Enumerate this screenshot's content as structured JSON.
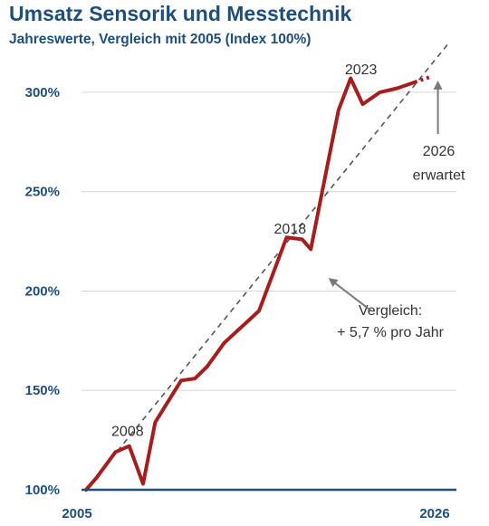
{
  "chart_data": {
    "type": "line",
    "title": "Umsatz Sensorik und Messtechnik",
    "subtitle": "Jahreswerte, Vergleich mit 2005 (Index 100%)",
    "xlabel": "",
    "ylabel": "",
    "xlim": [
      2005,
      2026
    ],
    "ylim": [
      100,
      320
    ],
    "yticks": [
      100,
      150,
      200,
      250,
      300
    ],
    "ytick_labels": [
      "100%",
      "150%",
      "200%",
      "250%",
      "300%"
    ],
    "xtick_labels": [
      "2005",
      "2026"
    ],
    "grid": "horizontal",
    "series": [
      {
        "x": [
          2005,
          2005.6,
          2006.7,
          2007.5,
          2008.3,
          2009,
          2010.5,
          2011.3,
          2012,
          2013,
          2014,
          2015,
          2016.6,
          2017.5,
          2018,
          2019,
          2019.6,
          2020.3,
          2021,
          2022,
          2023,
          2024,
          2025
        ],
        "y": [
          100,
          106,
          119,
          122,
          103,
          134,
          155,
          156,
          162,
          174,
          182,
          190,
          227,
          226,
          221,
          265,
          291,
          307,
          294,
          300,
          302,
          305,
          308
        ],
        "color": "#a51d1d",
        "projected_from_x": 2024
      },
      {
        "x": [
          2005,
          2026
        ],
        "y": [
          100,
          325
        ],
        "color": "#555555",
        "style": "dashed"
      }
    ],
    "annotations": [
      {
        "text": "2008",
        "x": 2007.4,
        "y": 127
      },
      {
        "text": "2018",
        "x": 2016.8,
        "y": 229
      },
      {
        "text": "2023",
        "x": 2020.9,
        "y": 309
      },
      {
        "text": "Vergleich:",
        "x": 2022.6,
        "y": 188
      },
      {
        "text": "+ 5,7 % pro Jahr",
        "x": 2022.6,
        "y": 177
      },
      {
        "text": "2026",
        "x": 2025.4,
        "y": 268
      },
      {
        "text": "erwartet",
        "x": 2025.4,
        "y": 256
      }
    ],
    "arrows": [
      {
        "from_x": 2021.5,
        "from_y": 190,
        "to_x": 2019.1,
        "to_y": 206
      },
      {
        "from_x": 2025.35,
        "from_y": 279,
        "to_x": 2025.35,
        "to_y": 305
      }
    ]
  }
}
